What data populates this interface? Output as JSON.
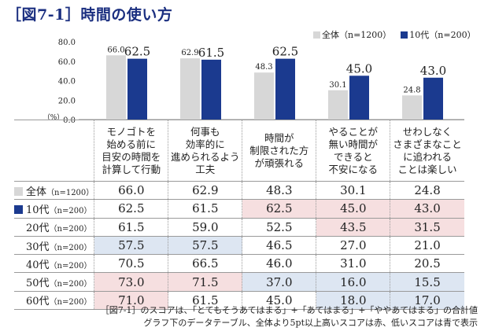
{
  "title": "［図7-1］時間の使い方",
  "colors": {
    "all": "#d7d7d7",
    "teen": "#1b3a8f",
    "high": "#f6dfe0",
    "low": "#dde6f2"
  },
  "chart_data": {
    "type": "bar",
    "categories": [
      "モノゴトを\n始める前に\n目安の時間を\n計算して行動",
      "何事も\n効率的に\n進められるよう\n工夫",
      "時間が\n制限された方\nが頑張れる",
      "やることが\n無い時間が\nできると\n不安になる",
      "せわしなく\nさまざまなこと\nに追われる\nことは楽しい"
    ],
    "series": [
      {
        "name": "全体（n=1200）",
        "values": [
          66.0,
          62.9,
          48.3,
          30.1,
          24.8
        ]
      },
      {
        "name": "10代（n=200）",
        "values": [
          62.5,
          61.5,
          62.5,
          45.0,
          43.0
        ]
      }
    ],
    "yticks": [
      "0.0",
      "20.0",
      "40.0",
      "60.0",
      "80.0"
    ],
    "ylim": [
      0,
      80
    ],
    "ylabel": "（%）",
    "value_labels": [
      [
        "66.0",
        "62.9",
        "48.3",
        "30.1",
        "24.8"
      ],
      [
        "62.5",
        "61.5",
        "62.5",
        "45.0",
        "43.0"
      ]
    ],
    "legend_position": "top-right"
  },
  "table": {
    "rows": [
      {
        "label": "全体",
        "n": "（n=1200）",
        "swatch": "all",
        "values": [
          "66.0",
          "62.9",
          "48.3",
          "30.1",
          "24.8"
        ],
        "marks": [
          "",
          "",
          "",
          "",
          ""
        ]
      },
      {
        "label": "10代",
        "n": "（n=200）",
        "swatch": "teen",
        "values": [
          "62.5",
          "61.5",
          "62.5",
          "45.0",
          "43.0"
        ],
        "marks": [
          "",
          "",
          "high",
          "high",
          "high"
        ]
      },
      {
        "label": "20代",
        "n": "（n=200）",
        "swatch": "",
        "values": [
          "61.5",
          "59.0",
          "52.5",
          "43.5",
          "31.5"
        ],
        "marks": [
          "",
          "",
          "",
          "high",
          "high"
        ]
      },
      {
        "label": "30代",
        "n": "（n=200）",
        "swatch": "",
        "values": [
          "57.5",
          "57.5",
          "46.5",
          "27.0",
          "21.0"
        ],
        "marks": [
          "low",
          "low",
          "",
          "",
          ""
        ]
      },
      {
        "label": "40代",
        "n": "（n=200）",
        "swatch": "",
        "values": [
          "70.5",
          "66.5",
          "46.0",
          "31.0",
          "20.5"
        ],
        "marks": [
          "",
          "",
          "",
          "",
          ""
        ]
      },
      {
        "label": "50代",
        "n": "（n=200）",
        "swatch": "",
        "values": [
          "73.0",
          "71.5",
          "37.0",
          "16.0",
          "15.5"
        ],
        "marks": [
          "high",
          "high",
          "low",
          "low",
          "low"
        ]
      },
      {
        "label": "60代",
        "n": "（n=200）",
        "swatch": "",
        "values": [
          "71.0",
          "61.5",
          "45.0",
          "18.0",
          "17.0"
        ],
        "marks": [
          "high",
          "",
          "",
          "low",
          "low"
        ]
      }
    ]
  },
  "notes": {
    "line1": "［図7-1］のスコアは、「とてもそうあてはまる」+「あてはまる」+「ややあてはまる」の合計値",
    "line2": "グラフ下のデータテーブル、全体より5pt以上高いスコアは赤、低いスコアは青で表示"
  }
}
